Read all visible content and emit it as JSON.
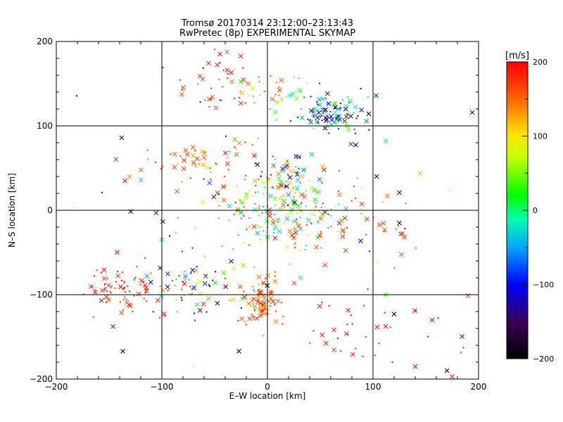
{
  "chart_data": {
    "type": "scatter",
    "title_line1": "Tromsø 20170314 23:12:00–23:13:43",
    "title_line2": "RwPretec (8p) EXPERIMENTAL SKYMAP",
    "xlabel": "E–W location [km]",
    "ylabel": "N–S location [km]",
    "xlim": [
      -200,
      200
    ],
    "ylim": [
      -200,
      200
    ],
    "xticks": [
      -200,
      -100,
      0,
      100,
      200
    ],
    "yticks": [
      -200,
      -100,
      0,
      100,
      200
    ],
    "xtick_labels": [
      "−200",
      "−100",
      "0",
      "100",
      "200"
    ],
    "ytick_labels": [
      "−200",
      "−100",
      "0",
      "100",
      "200"
    ],
    "grid_lines": [
      -100,
      0,
      100
    ],
    "colorbar": {
      "label": "[m/s]",
      "range": [
        -200,
        200
      ],
      "ticks": [
        200,
        100,
        0,
        -100,
        -200
      ],
      "tick_labels": [
        "200",
        "100",
        "0",
        "−100",
        "−200"
      ]
    },
    "clusters": [
      {
        "name": "north-east black group",
        "cx": 60,
        "cy": 115,
        "sx": 18,
        "sy": 12,
        "n": 110,
        "vmin": -200,
        "vmax": 60
      },
      {
        "name": "north red arc",
        "cx": -35,
        "cy": 150,
        "sx": 35,
        "sy": 15,
        "n": 45,
        "vmin": 150,
        "vmax": 200
      },
      {
        "name": "north center",
        "cx": 10,
        "cy": 140,
        "sx": 25,
        "sy": 10,
        "n": 35,
        "vmin": -50,
        "vmax": 200
      },
      {
        "name": "north-west band",
        "cx": -60,
        "cy": 55,
        "sx": 30,
        "sy": 15,
        "n": 55,
        "vmin": 120,
        "vmax": 200
      },
      {
        "name": "center upper",
        "cx": 10,
        "cy": 45,
        "sx": 15,
        "sy": 12,
        "n": 45,
        "vmin": -200,
        "vmax": 200
      },
      {
        "name": "center main cloud",
        "cx": 15,
        "cy": 0,
        "sx": 30,
        "sy": 20,
        "n": 190,
        "vmin": -60,
        "vmax": 200
      },
      {
        "name": "east spread",
        "cx": 70,
        "cy": -15,
        "sx": 35,
        "sy": 30,
        "n": 40,
        "vmin": 150,
        "vmax": 200
      },
      {
        "name": "south-west group",
        "cx": -140,
        "cy": -95,
        "sx": 20,
        "sy": 15,
        "n": 75,
        "vmin": 160,
        "vmax": 200
      },
      {
        "name": "south-center-left group",
        "cx": -70,
        "cy": -85,
        "sx": 25,
        "sy": 20,
        "n": 75,
        "vmin": -200,
        "vmax": 200
      },
      {
        "name": "south dense",
        "cx": -5,
        "cy": -110,
        "sx": 10,
        "sy": 15,
        "n": 80,
        "vmin": 120,
        "vmax": 200
      },
      {
        "name": "south-east trail",
        "cx": 100,
        "cy": -140,
        "sx": 40,
        "sy": 25,
        "n": 35,
        "vmin": 180,
        "vmax": 200
      },
      {
        "name": "scattered background",
        "cx": 0,
        "cy": 0,
        "sx": 110,
        "sy": 100,
        "n": 60,
        "vmin": -200,
        "vmax": 200
      }
    ],
    "notable_points": [
      {
        "x": 194,
        "y": 116,
        "v": -200
      },
      {
        "x": -138,
        "y": 86,
        "v": -200
      },
      {
        "x": -135,
        "y": 35,
        "v": 200
      },
      {
        "x": -137,
        "y": -167,
        "v": -200
      },
      {
        "x": -27,
        "y": -167,
        "v": -200
      },
      {
        "x": 170,
        "y": -190,
        "v": -200
      },
      {
        "x": 125,
        "y": -15,
        "v": -200
      },
      {
        "x": 125,
        "y": 21,
        "v": -200
      },
      {
        "x": 120,
        "y": -123,
        "v": -200
      },
      {
        "x": -45,
        "y": 185,
        "v": 200
      },
      {
        "x": 175,
        "y": -197,
        "v": 200
      },
      {
        "x": 156,
        "y": -130,
        "v": 200
      },
      {
        "x": 140,
        "y": -185,
        "v": 200
      },
      {
        "x": -100,
        "y": -35,
        "v": -30
      },
      {
        "x": 112,
        "y": -100,
        "v": 30
      },
      {
        "x": 112,
        "y": 82,
        "v": -20
      }
    ]
  }
}
